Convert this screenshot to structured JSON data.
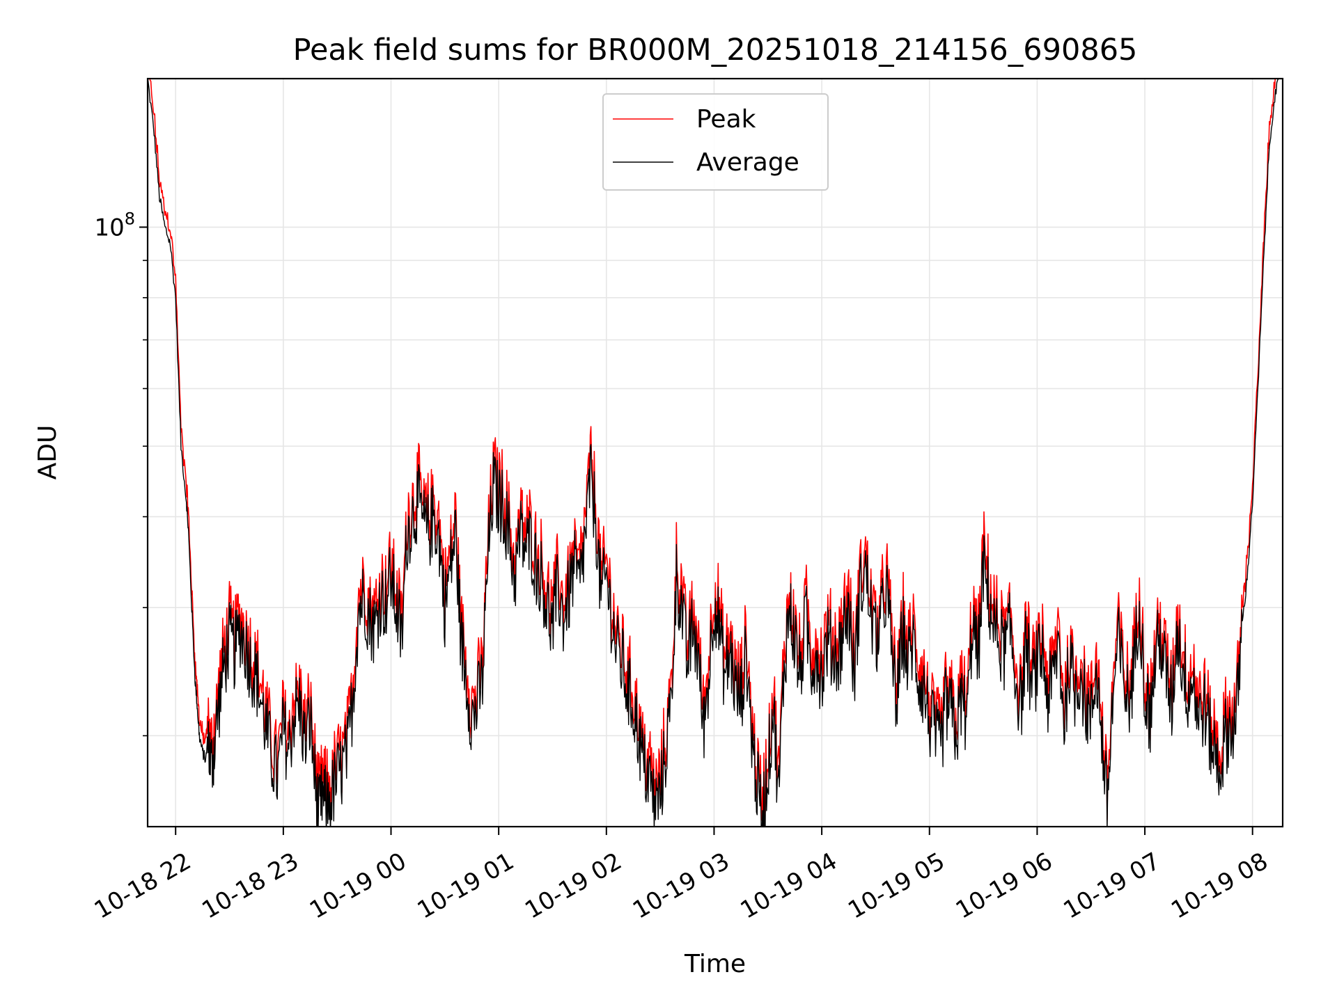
{
  "chart_data": {
    "type": "line",
    "title": "Peak field sums for BR000M_20251018_214156_690865",
    "xlabel": "Time",
    "ylabel": "ADU",
    "yscale": "log",
    "ylim": [
      15000000,
      160000000
    ],
    "xlim_hours": [
      -0.26,
      10.28
    ],
    "grid": true,
    "legend": {
      "position": "upper center",
      "entries": [
        "Peak",
        "Average"
      ]
    },
    "colors": {
      "Peak": "#ff0000",
      "Average": "#000000",
      "grid": "#e6e6e6",
      "frame": "#000000"
    },
    "x_ticks": [
      {
        "hour": 0,
        "label": "10-18 22"
      },
      {
        "hour": 1,
        "label": "10-18 23"
      },
      {
        "hour": 2,
        "label": "10-19 00"
      },
      {
        "hour": 3,
        "label": "10-19 01"
      },
      {
        "hour": 4,
        "label": "10-19 02"
      },
      {
        "hour": 5,
        "label": "10-19 03"
      },
      {
        "hour": 6,
        "label": "10-19 04"
      },
      {
        "hour": 7,
        "label": "10-19 05"
      },
      {
        "hour": 8,
        "label": "10-19 06"
      },
      {
        "hour": 9,
        "label": "10-19 07"
      },
      {
        "hour": 10,
        "label": "10-19 08"
      }
    ],
    "y_major_ticks": [
      {
        "value": 100000000,
        "base": "10",
        "exponent": "8"
      }
    ],
    "y_minor_ticks": [
      20000000,
      30000000,
      40000000,
      50000000,
      60000000,
      70000000,
      80000000,
      90000000
    ],
    "series": [
      {
        "name": "Average",
        "x_hours": [
          -0.26,
          -0.2,
          -0.15,
          -0.1,
          -0.05,
          0.0,
          0.05,
          0.1,
          0.12,
          0.15,
          0.18,
          0.2,
          0.22,
          0.25,
          0.28,
          0.3,
          0.33,
          0.36,
          0.4,
          0.45,
          0.5,
          0.55,
          0.6,
          0.65,
          0.7,
          0.75,
          0.8,
          0.85,
          0.9,
          0.95,
          1.0,
          1.05,
          1.1,
          1.15,
          1.2,
          1.25,
          1.3,
          1.33,
          1.36,
          1.4,
          1.45,
          1.5,
          1.55,
          1.6,
          1.65,
          1.7,
          1.75,
          1.8,
          1.85,
          1.9,
          1.95,
          2.0,
          2.05,
          2.1,
          2.15,
          2.2,
          2.25,
          2.3,
          2.35,
          2.4,
          2.45,
          2.5,
          2.55,
          2.6,
          2.65,
          2.7,
          2.75,
          2.8,
          2.85,
          2.9,
          2.95,
          3.0,
          3.05,
          3.1,
          3.15,
          3.2,
          3.25,
          3.3,
          3.35,
          3.4,
          3.45,
          3.5,
          3.55,
          3.6,
          3.65,
          3.7,
          3.75,
          3.8,
          3.85,
          3.9,
          3.95,
          4.0,
          4.05,
          4.1,
          4.15,
          4.2,
          4.25,
          4.3,
          4.35,
          4.4,
          4.45,
          4.5,
          4.55,
          4.6,
          4.65,
          4.7,
          4.75,
          4.8,
          4.85,
          4.9,
          4.95,
          5.0,
          5.05,
          5.1,
          5.15,
          5.2,
          5.25,
          5.3,
          5.35,
          5.4,
          5.45,
          5.5,
          5.55,
          5.6,
          5.65,
          5.7,
          5.75,
          5.8,
          5.85,
          5.9,
          5.95,
          6.0,
          6.05,
          6.1,
          6.15,
          6.2,
          6.25,
          6.3,
          6.35,
          6.4,
          6.45,
          6.5,
          6.55,
          6.6,
          6.65,
          6.7,
          6.75,
          6.8,
          6.85,
          6.9,
          6.95,
          7.0,
          7.05,
          7.1,
          7.15,
          7.2,
          7.25,
          7.3,
          7.35,
          7.4,
          7.45,
          7.5,
          7.55,
          7.6,
          7.65,
          7.7,
          7.75,
          7.8,
          7.85,
          7.9,
          7.95,
          8.0,
          8.05,
          8.1,
          8.15,
          8.2,
          8.25,
          8.3,
          8.35,
          8.4,
          8.45,
          8.5,
          8.55,
          8.6,
          8.65,
          8.7,
          8.75,
          8.8,
          8.85,
          8.9,
          8.95,
          9.0,
          9.05,
          9.1,
          9.15,
          9.2,
          9.25,
          9.3,
          9.35,
          9.4,
          9.45,
          9.5,
          9.55,
          9.6,
          9.65,
          9.7,
          9.75,
          9.8,
          9.85,
          9.9,
          9.95,
          10.0,
          10.05,
          10.1,
          10.15,
          10.2,
          10.25
        ],
        "values": [
          160000000,
          135000000,
          110000000,
          100000000,
          95000000,
          80000000,
          50000000,
          42000000,
          38000000,
          30000000,
          24000000,
          22000000,
          20000000,
          19000000,
          18500000,
          20000000,
          18000000,
          19500000,
          22000000,
          25000000,
          27000000,
          26000000,
          28000000,
          26500000,
          25000000,
          24000000,
          22000000,
          20000000,
          18500000,
          17500000,
          20500000,
          19000000,
          21500000,
          22000000,
          19500000,
          21000000,
          17000000,
          15500000,
          16500000,
          16000000,
          16500000,
          17500000,
          18000000,
          19000000,
          23000000,
          30000000,
          31000000,
          29000000,
          28000000,
          31000000,
          30500000,
          33000000,
          30000000,
          27000000,
          38000000,
          40000000,
          42000000,
          39000000,
          38000000,
          40000000,
          37000000,
          30000000,
          34000000,
          38000000,
          27000000,
          24000000,
          21000000,
          22000000,
          24000000,
          35000000,
          44000000,
          42000000,
          41000000,
          37000000,
          33000000,
          38000000,
          36000000,
          37000000,
          34000000,
          33000000,
          30000000,
          28000000,
          32000000,
          29000000,
          31000000,
          34000000,
          32000000,
          37000000,
          45000000,
          40000000,
          31000000,
          33000000,
          29000000,
          26000000,
          25000000,
          23000000,
          22000000,
          20000000,
          18000000,
          17500000,
          16000000,
          16500000,
          19000000,
          22000000,
          33000000,
          30000000,
          25000000,
          28000000,
          26000000,
          20500000,
          24000000,
          31000000,
          28000000,
          24000000,
          26000000,
          23000000,
          22500000,
          26000000,
          20000000,
          17000000,
          15500000,
          18000000,
          22000000,
          16500000,
          25000000,
          30000000,
          27000000,
          24000000,
          29000000,
          25000000,
          26000000,
          24000000,
          27000000,
          26000000,
          25500000,
          28000000,
          30000000,
          24000000,
          31000000,
          34000000,
          30000000,
          27000000,
          28500000,
          32000000,
          26000000,
          22000000,
          28000000,
          25000000,
          27000000,
          24000000,
          23000000,
          21000000,
          20000000,
          19000000,
          22000000,
          21500000,
          20000000,
          22500000,
          21000000,
          29000000,
          25000000,
          34000000,
          31000000,
          28000000,
          27000000,
          26000000,
          28000000,
          24000000,
          22000000,
          27000000,
          23000000,
          25000000,
          26000000,
          22500000,
          24000000,
          27000000,
          21000000,
          25000000,
          23000000,
          24500000,
          22000000,
          21000000,
          25000000,
          20000000,
          16000000,
          22000000,
          27000000,
          24000000,
          22000000,
          25000000,
          31000000,
          23000000,
          21000000,
          26000000,
          27000000,
          24000000,
          22000000,
          28000000,
          25000000,
          23000000,
          24000000,
          21000000,
          22000000,
          20000000,
          19000000,
          18000000,
          20000000,
          20500000,
          21000000,
          28000000,
          33000000,
          42000000,
          60000000,
          88000000,
          125000000,
          150000000,
          160000000
        ]
      }
    ]
  }
}
